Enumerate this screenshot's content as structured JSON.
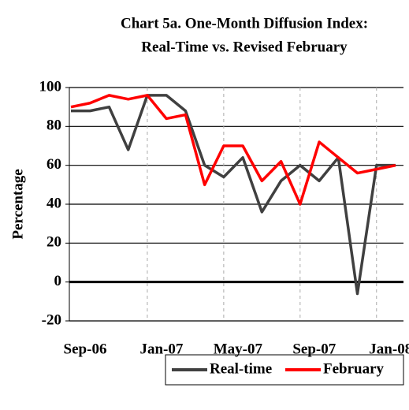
{
  "chart_data": {
    "type": "line",
    "title": [
      "Chart 5a. One-Month Diffusion Index:",
      "Real-Time vs. Revised February"
    ],
    "y_label": "Percentage",
    "categories": [
      "Sep-06",
      null,
      null,
      null,
      "Jan-07",
      null,
      null,
      null,
      "May-07",
      null,
      null,
      null,
      "Sep-07",
      null,
      null,
      null,
      "Jan-08",
      null
    ],
    "series": [
      {
        "name": "Real-time",
        "color": "#404040",
        "values": [
          88,
          88,
          90,
          68,
          96,
          96,
          88,
          60,
          54,
          64,
          36,
          52,
          60,
          52,
          64,
          -6,
          60,
          60
        ]
      },
      {
        "name": "February",
        "color": "#ff0000",
        "values": [
          90,
          92,
          96,
          94,
          96,
          84,
          86,
          50,
          70,
          70,
          52,
          62,
          40,
          72,
          64,
          56,
          58,
          60
        ]
      }
    ],
    "ylim": [
      -20,
      100
    ],
    "yticks": [
      -20,
      0,
      20,
      40,
      60,
      80,
      100
    ],
    "grid": true
  }
}
